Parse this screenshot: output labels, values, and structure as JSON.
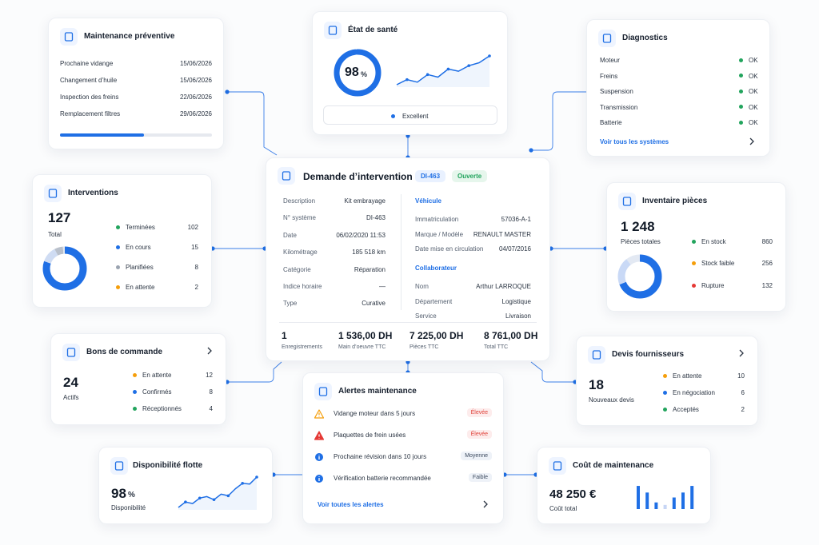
{
  "maintenance": {
    "title": "Maintenance préventive",
    "items": [
      {
        "label": "Prochaine vidange",
        "date": "15/06/2026"
      },
      {
        "label": "Changement d’huile",
        "date": "15/06/2026"
      },
      {
        "label": "Inspection des freins",
        "date": "22/06/2026"
      },
      {
        "label": "Remplacement filtres",
        "date": "29/06/2026"
      }
    ],
    "progress": 55
  },
  "health": {
    "title": "État de santé",
    "score": 98,
    "unit": "%",
    "status": "Excellent",
    "trend": [
      18,
      30,
      24,
      42,
      36,
      55,
      50,
      63,
      70,
      86
    ]
  },
  "diagnostics": {
    "title": "Diagnostics",
    "items": [
      {
        "label": "Moteur",
        "status": "OK"
      },
      {
        "label": "Freins",
        "status": "OK"
      },
      {
        "label": "Suspension",
        "status": "OK"
      },
      {
        "label": "Transmission",
        "status": "OK"
      },
      {
        "label": "Batterie",
        "status": "OK"
      }
    ],
    "link": "Voir tous les systèmes"
  },
  "interventions": {
    "title": "Interventions",
    "total": 127,
    "total_label": "Total",
    "items": [
      {
        "label": "Terminées",
        "value": 102,
        "color": "#22a45d"
      },
      {
        "label": "En cours",
        "value": 15,
        "color": "#1f6fe5"
      },
      {
        "label": "Planifiées",
        "value": 8,
        "color": "#9aa3b0"
      },
      {
        "label": "En attente",
        "value": 2,
        "color": "#f59e0b"
      }
    ],
    "donut_colors": [
      "#1f6fe5",
      "#cfdcf3",
      "#b9c0cb",
      "#e3e7ee"
    ]
  },
  "request": {
    "title": "Demande d’intervention",
    "id": "DI-463",
    "status": "Ouverte",
    "details": [
      {
        "label": "Description",
        "value": "Kit embrayage"
      },
      {
        "label": "N° système",
        "value": "DI-463"
      },
      {
        "label": "Date",
        "value": "06/02/2020 11:53"
      },
      {
        "label": "Kilométrage",
        "value": "185 518 km"
      },
      {
        "label": "Catégorie",
        "value": "Réparation"
      },
      {
        "label": "Indice horaire",
        "value": "—"
      },
      {
        "label": "Type",
        "value": "Curative"
      }
    ],
    "vehicle": {
      "title": "Véhicule",
      "rows": [
        {
          "label": "Immatriculation",
          "value": "57036-A-1"
        },
        {
          "label": "Marque / Modèle",
          "value": "RENAULT MASTER"
        },
        {
          "label": "Date mise en circulation",
          "value": "04/07/2016"
        }
      ]
    },
    "collaborator": {
      "title": "Collaborateur",
      "rows": [
        {
          "label": "Nom",
          "value": "Arthur LARROQUE"
        },
        {
          "label": "Département",
          "value": "Logistique"
        },
        {
          "label": "Service",
          "value": "Livraison"
        }
      ]
    },
    "totals": [
      {
        "value": 1,
        "label": "Enregistrements"
      },
      {
        "value": "1 536,00 DH",
        "label": "Main d’oeuvre TTC"
      },
      {
        "value": "7 225,00 DH",
        "label": "Pièces TTC"
      },
      {
        "value": "8 761,00 DH",
        "label": "Total TTC"
      }
    ]
  },
  "inventory": {
    "title": "Inventaire pièces",
    "total": "1 248",
    "total_label": "Pièces totales",
    "items": [
      {
        "label": "En stock",
        "value": 860,
        "color": "#22a45d"
      },
      {
        "label": "Stock faible",
        "value": 256,
        "color": "#f59e0b"
      },
      {
        "label": "Rupture",
        "value": 132,
        "color": "#e53935"
      }
    ],
    "donut_colors": [
      "#1f6fe5",
      "#c9d9f6",
      "#e3e9f3"
    ]
  },
  "orders": {
    "title": "Bons de commande",
    "total": 24,
    "total_label": "Actifs",
    "items": [
      {
        "label": "En attente",
        "value": 12,
        "color": "#f59e0b"
      },
      {
        "label": "Confirmés",
        "value": 8,
        "color": "#1f6fe5"
      },
      {
        "label": "Réceptionnés",
        "value": 4,
        "color": "#22a45d"
      }
    ]
  },
  "alerts": {
    "title": "Alertes maintenance",
    "items": [
      {
        "label": "Vidange moteur dans 5 jours",
        "level": "Élevée",
        "icon": "warning",
        "color": "#f59e0b"
      },
      {
        "label": "Plaquettes de frein usées",
        "level": "Élevée",
        "icon": "warning",
        "color": "#e53935"
      },
      {
        "label": "Prochaine révision dans 10 jours",
        "level": "Moyenne",
        "icon": "info",
        "color": "#1f6fe5"
      },
      {
        "label": "Vérification batterie recommandée",
        "level": "Faible",
        "icon": "info",
        "color": "#1f6fe5"
      }
    ],
    "link": "Voir toutes les alertes"
  },
  "quotes": {
    "title": "Devis fournisseurs",
    "total": 18,
    "total_label": "Nouveaux devis",
    "items": [
      {
        "label": "En attente",
        "value": 10,
        "color": "#f59e0b"
      },
      {
        "label": "En négociation",
        "value": 6,
        "color": "#1f6fe5"
      },
      {
        "label": "Acceptés",
        "value": 2,
        "color": "#22a45d"
      }
    ]
  },
  "availability": {
    "title": "Disponibilité flotte",
    "value": 98,
    "unit": "%",
    "label": "Disponibilité",
    "trend": [
      10,
      24,
      20,
      34,
      38,
      30,
      44,
      40,
      58,
      72,
      70,
      88
    ]
  },
  "cost": {
    "title": "Coût de maintenance",
    "total": "48 250 €",
    "total_label": "Coût total",
    "bars": [
      28,
      20,
      8,
      5,
      14,
      20,
      28
    ],
    "bar_colors": [
      "#1f6fe5",
      "#1f6fe5",
      "#1f6fe5",
      "#c7d6f5",
      "#1f6fe5",
      "#1f6fe5",
      "#1f6fe5"
    ],
    "ylim": [
      0,
      30
    ]
  }
}
